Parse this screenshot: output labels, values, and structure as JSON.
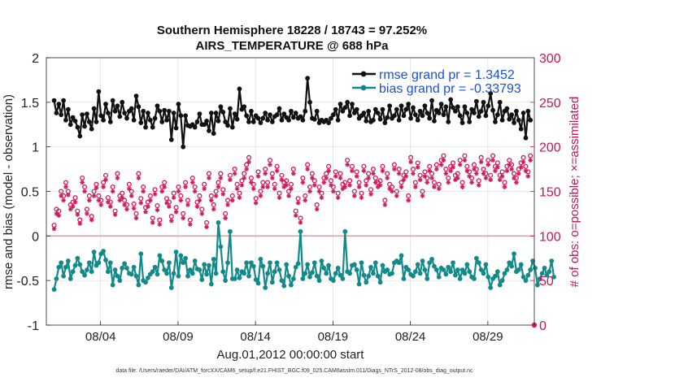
{
  "chart_data": {
    "type": "line",
    "title_line1": "Southern Hemisphere 18228 / 18743 = 97.252%",
    "title_line2": "AIRS_TEMPERATURE @ 688 hPa",
    "ylabel_left": "rmse and bias (model - observation)",
    "ylabel_right": "# of obs: o=possible; ×=assimilated",
    "xlabel": "Aug.01,2012 00:00:00 start",
    "data_file": "data file: /Users/raeder/DAI/ATM_forcXX/CAM6_setup/f.e21.FHIST_BGC.f09_025.CAM6assim.011/Diags_NTrS_2012-08/obs_diag_output.nc",
    "ylim_left": [
      -1,
      2
    ],
    "ylim_right": [
      0,
      300
    ],
    "xlim": [
      0.5,
      32.0
    ],
    "yticks_left": [
      "-1",
      "-0.5",
      "0",
      "0.5",
      "1",
      "1.5",
      "2"
    ],
    "yticks_right": [
      "0",
      "50",
      "100",
      "150",
      "200",
      "250",
      "300"
    ],
    "xticks": [
      {
        "x": 4,
        "label": "08/04"
      },
      {
        "x": 9,
        "label": "08/09"
      },
      {
        "x": 14,
        "label": "08/14"
      },
      {
        "x": 19,
        "label": "08/19"
      },
      {
        "x": 24,
        "label": "08/24"
      },
      {
        "x": 29,
        "label": "08/29"
      }
    ],
    "colors": {
      "rmse": "#111111",
      "bias": "#138a8a",
      "obs": "#d41a5a",
      "zero_line": "#c9a9a9",
      "grid": "#dddddd"
    },
    "legend": [
      "rmse grand pr = 1.3452",
      "bias grand pr = -0.33793"
    ],
    "series": [
      {
        "name": "rmse",
        "values": [
          1.52,
          1.38,
          1.48,
          1.36,
          1.52,
          1.3,
          1.42,
          1.25,
          1.33,
          1.29,
          1.22,
          1.12,
          1.36,
          1.23,
          1.37,
          1.28,
          1.2,
          1.43,
          1.28,
          1.62,
          1.35,
          1.3,
          1.48,
          1.38,
          1.28,
          1.52,
          1.4,
          1.46,
          1.34,
          1.5,
          1.38,
          1.32,
          1.4,
          1.43,
          1.3,
          1.57,
          1.45,
          1.27,
          1.4,
          1.22,
          1.38,
          1.3,
          1.22,
          1.32,
          1.46,
          1.4,
          1.28,
          1.41,
          1.3,
          1.4,
          1.08,
          1.38,
          1.21,
          1.48,
          1.35,
          1.0,
          1.35,
          1.24,
          1.23,
          1.25,
          1.22,
          1.28,
          1.37,
          1.25,
          1.25,
          1.29,
          1.18,
          1.38,
          1.15,
          1.38,
          1.29,
          1.45,
          1.39,
          1.28,
          1.24,
          1.43,
          1.22,
          1.37,
          1.31,
          1.65,
          1.42,
          1.45,
          1.35,
          1.28,
          1.4,
          1.28,
          1.35,
          1.32,
          1.27,
          1.32,
          1.38,
          1.3,
          1.36,
          1.28,
          1.34,
          1.36,
          1.43,
          1.3,
          1.37,
          1.33,
          1.3,
          1.4,
          1.33,
          1.38,
          1.32,
          1.34,
          1.3,
          1.4,
          1.77,
          1.5,
          1.32,
          1.31,
          1.4,
          1.27,
          1.3,
          1.28,
          1.3,
          1.27,
          1.32,
          1.36,
          1.42,
          1.3,
          1.48,
          1.4,
          1.44,
          1.5,
          1.35,
          1.48,
          1.38,
          1.42,
          1.32,
          1.35,
          1.38,
          1.29,
          1.4,
          1.28,
          1.3,
          1.42,
          1.38,
          1.31,
          1.42,
          1.27,
          1.33,
          1.46,
          1.32,
          1.35,
          1.42,
          1.3,
          1.46,
          1.35,
          1.42,
          1.48,
          1.32,
          1.44,
          1.36,
          1.3,
          1.4,
          1.35,
          1.46,
          1.38,
          1.32,
          1.52,
          1.29,
          1.41,
          1.38,
          1.48,
          1.36,
          1.45,
          1.28,
          1.53,
          1.44,
          1.4,
          1.45,
          1.35,
          1.27,
          1.45,
          1.38,
          1.28,
          1.42,
          1.38,
          1.51,
          1.34,
          1.4,
          1.5,
          1.35,
          1.46,
          1.6,
          1.41,
          1.28,
          1.36,
          1.5,
          1.3,
          1.4,
          1.43,
          1.31,
          1.36,
          1.27,
          1.4,
          1.3,
          1.2,
          1.38,
          1.1,
          1.4,
          1.3
        ]
      },
      {
        "name": "bias",
        "values": [
          -0.6,
          -0.48,
          -0.35,
          -0.3,
          -0.45,
          -0.35,
          -0.28,
          -0.48,
          -0.4,
          -0.33,
          -0.25,
          -0.32,
          -0.4,
          -0.44,
          -0.38,
          -0.3,
          -0.4,
          -0.18,
          -0.33,
          -0.3,
          -0.2,
          -0.17,
          -0.27,
          -0.4,
          -0.3,
          -0.55,
          -0.38,
          -0.45,
          -0.5,
          -0.36,
          -0.31,
          -0.36,
          -0.42,
          -0.43,
          -0.35,
          -0.45,
          -0.55,
          -0.2,
          -0.5,
          -0.52,
          -0.47,
          -0.43,
          -0.4,
          -0.35,
          -0.43,
          -0.22,
          -0.28,
          -0.38,
          -0.42,
          -0.3,
          -0.58,
          -0.42,
          -0.18,
          -0.45,
          -0.22,
          -0.3,
          -0.25,
          -0.45,
          -0.38,
          -0.42,
          -0.28,
          -0.37,
          -0.38,
          -0.49,
          -0.32,
          -0.43,
          -0.33,
          -0.54,
          -0.26,
          -0.42,
          0.15,
          -0.12,
          -0.4,
          -0.5,
          -0.3,
          0.05,
          -0.48,
          -0.48,
          -0.38,
          -0.47,
          -0.4,
          -0.42,
          -0.3,
          -0.45,
          -0.3,
          -0.34,
          -0.49,
          -0.53,
          -0.26,
          -0.34,
          -0.58,
          -0.42,
          -0.3,
          -0.52,
          -0.4,
          -0.3,
          -0.38,
          -0.5,
          -0.56,
          -0.32,
          -0.45,
          -0.55,
          -0.48,
          -0.35,
          -0.31,
          0.05,
          -0.48,
          -0.42,
          -0.32,
          -0.46,
          -0.41,
          -0.3,
          -0.45,
          -0.5,
          -0.28,
          -0.36,
          -0.42,
          -0.33,
          -0.48,
          -0.5,
          -0.42,
          -0.36,
          -0.44,
          -0.48,
          0.05,
          -0.4,
          -0.42,
          -0.33,
          -0.32,
          -0.38,
          -0.54,
          -0.3,
          -0.44,
          -0.52,
          -0.45,
          -0.35,
          -0.42,
          -0.3,
          -0.45,
          -0.52,
          -0.33,
          -0.4,
          -0.38,
          -0.43,
          -0.42,
          -0.3,
          -0.28,
          -0.3,
          -0.22,
          -0.48,
          -0.35,
          -0.38,
          -0.43,
          -0.45,
          -0.4,
          -0.32,
          -0.42,
          -0.28,
          -0.38,
          -0.48,
          -0.3,
          -0.26,
          -0.34,
          -0.38,
          -0.46,
          -0.36,
          -0.38,
          -0.43,
          -0.35,
          -0.4,
          -0.3,
          -0.44,
          -0.38,
          -0.48,
          -0.38,
          -0.42,
          -0.32,
          -0.4,
          -0.46,
          -0.48,
          -0.25,
          -0.3,
          -0.38,
          -0.42,
          -0.32,
          -0.46,
          -0.58,
          -0.48,
          -0.45,
          -0.4,
          -0.55,
          -0.5,
          -0.42,
          -0.38,
          -0.3,
          -0.34,
          -0.2,
          -0.4,
          -0.38,
          -0.32,
          -0.46,
          -0.5,
          -0.44,
          -0.38,
          -0.28,
          -0.36,
          -0.55,
          -0.48,
          -0.42,
          -0.36,
          -0.44,
          -0.4,
          -0.28,
          -0.46
        ]
      },
      {
        "name": "obs_possible",
        "values": [
          112,
          130,
          128,
          150,
          145,
          160,
          150,
          135,
          138,
          143,
          128,
          118,
          165,
          155,
          130,
          145,
          122,
          150,
          158,
          145,
          140,
          160,
          168,
          143,
          138,
          155,
          128,
          170,
          145,
          148,
          140,
          135,
          158,
          150,
          136,
          125,
          170,
          142,
          155,
          132,
          138,
          145,
          120,
          152,
          134,
          118,
          155,
          160,
          142,
          138,
          122,
          148,
          132,
          155,
          145,
          125,
          160,
          140,
          118,
          165,
          155,
          138,
          145,
          130,
          158,
          115,
          170,
          145,
          135,
          150,
          160,
          170,
          152,
          125,
          140,
          168,
          145,
          175,
          158,
          148,
          162,
          170,
          180,
          188,
          165,
          158,
          142,
          172,
          150,
          160,
          175,
          160,
          185,
          170,
          158,
          178,
          148,
          168,
          160,
          162,
          150,
          158,
          175,
          128,
          142,
          120,
          165,
          145,
          180,
          155,
          170,
          162,
          135,
          155,
          148,
          165,
          170,
          178,
          162,
          155,
          172,
          148,
          170,
          158,
          160,
          185,
          162,
          178,
          150,
          172,
          160,
          148,
          178,
          162,
          170,
          152,
          175,
          165,
          160,
          162,
          178,
          140,
          170,
          158,
          155,
          180,
          150,
          175,
          160,
          168,
          172,
          145,
          188,
          175,
          160,
          182,
          168,
          150,
          172,
          165,
          178,
          170,
          160,
          180,
          158,
          185,
          190,
          175,
          165,
          178,
          182,
          168,
          170,
          185,
          160,
          190,
          178,
          172,
          165,
          180,
          175,
          162,
          188,
          175,
          170,
          185,
          168,
          190,
          178,
          182,
          168,
          172,
          160,
          178,
          185,
          180,
          170,
          165,
          175,
          182,
          188,
          178,
          172,
          190
        ]
      },
      {
        "name": "obs_assimilated",
        "values": [
          108,
          125,
          123,
          145,
          140,
          155,
          146,
          130,
          133,
          138,
          124,
          114,
          160,
          150,
          125,
          140,
          118,
          145,
          154,
          140,
          135,
          155,
          163,
          138,
          133,
          150,
          124,
          165,
          140,
          143,
          135,
          130,
          153,
          145,
          131,
          120,
          165,
          137,
          150,
          127,
          133,
          140,
          115,
          147,
          129,
          113,
          150,
          155,
          137,
          133,
          117,
          143,
          127,
          150,
          140,
          120,
          155,
          135,
          113,
          160,
          150,
          133,
          140,
          125,
          153,
          110,
          165,
          140,
          130,
          145,
          155,
          165,
          147,
          120,
          135,
          163,
          140,
          170,
          153,
          143,
          157,
          165,
          175,
          183,
          160,
          153,
          137,
          167,
          145,
          155,
          170,
          155,
          180,
          165,
          153,
          173,
          143,
          163,
          155,
          157,
          145,
          153,
          170,
          123,
          137,
          115,
          160,
          140,
          175,
          150,
          165,
          157,
          130,
          150,
          143,
          160,
          165,
          173,
          157,
          150,
          167,
          143,
          165,
          153,
          155,
          180,
          157,
          173,
          145,
          167,
          155,
          143,
          173,
          157,
          165,
          147,
          170,
          160,
          155,
          157,
          173,
          135,
          165,
          153,
          150,
          175,
          145,
          170,
          155,
          163,
          167,
          140,
          183,
          170,
          155,
          177,
          163,
          145,
          167,
          160,
          173,
          165,
          155,
          175,
          153,
          180,
          185,
          170,
          160,
          173,
          177,
          163,
          165,
          180,
          155,
          185,
          173,
          167,
          160,
          175,
          170,
          157,
          183,
          170,
          165,
          180,
          163,
          185,
          173,
          177,
          163,
          167,
          155,
          173,
          180,
          175,
          165,
          160,
          170,
          177,
          183,
          173,
          167,
          185
        ]
      }
    ]
  }
}
